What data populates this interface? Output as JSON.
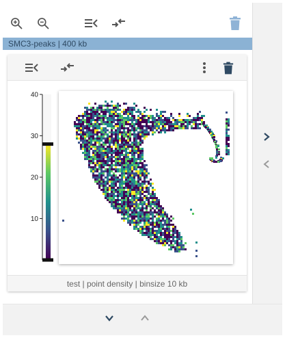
{
  "toolbar": {
    "zoom_in_icon": "zoom-in-icon",
    "zoom_out_icon": "zoom-out-icon",
    "collapse_icon": "collapse-left-icon",
    "merge_icon": "merge-arrows-icon",
    "delete_icon": "trash-icon"
  },
  "track": {
    "label": "SMC3-peaks | 400 kb"
  },
  "card": {
    "footer": "test | point density | binsize 10 kb",
    "menu_icon": "more-vertical-icon",
    "delete_icon": "trash-icon"
  },
  "colorbar": {
    "ticks": [
      "40",
      "30",
      "20",
      "10"
    ],
    "min": 0,
    "max": 40,
    "handle_values": [
      28,
      0
    ],
    "colors": [
      "#440154",
      "#3b528b",
      "#21908c",
      "#5dc963",
      "#fde725"
    ]
  },
  "nav": {
    "right_icon": "chevron-right-icon",
    "left_icon": "chevron-left-icon",
    "down_icon": "chevron-down-icon",
    "up_icon": "chevron-up-icon"
  }
}
